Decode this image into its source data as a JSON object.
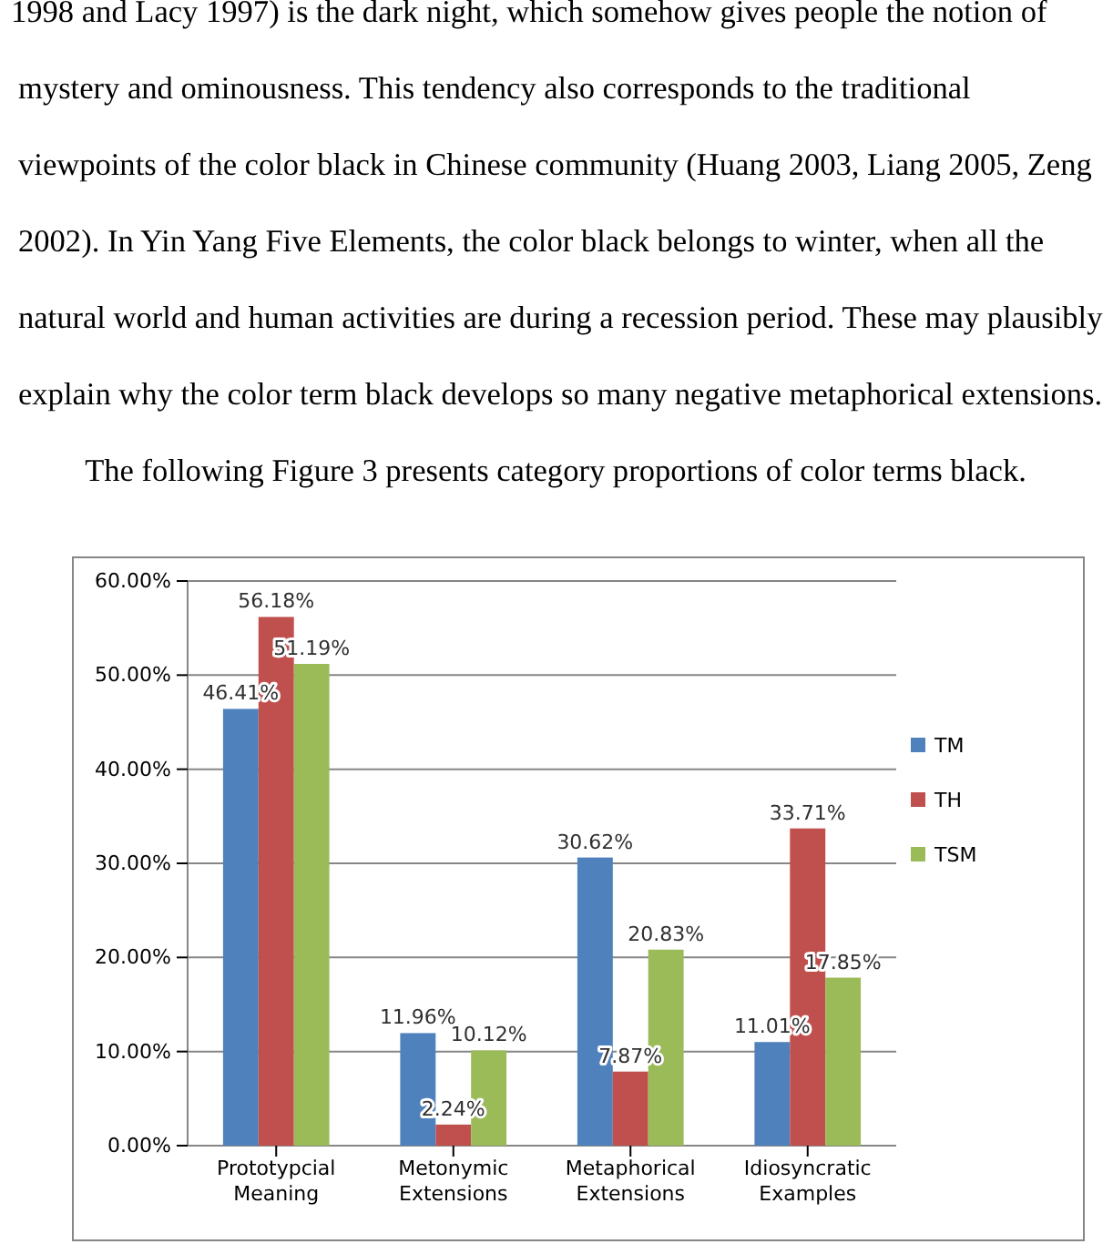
{
  "chart_data": {
    "type": "bar",
    "title": "The following Figure 3 presents category proportions of color terms black.",
    "annotations": [
      "1998 and Lacy 1997) is the dark night, which somehow gives people the notion of",
      "mystery and ominousness. This tendency also corresponds to the traditional",
      "viewpoints of the color black in Chinese community (Huang 2003, Liang 2005, Zeng",
      "2002). In Yin Yang Five Elements, the color black belongs to winter, when all the",
      "natural world and human activities are during a recession period. These may plausibly",
      "explain why the color term black develops so many negative metaphorical extensions."
    ],
    "categories": [
      "Prototypcial Meaning",
      "Metonymic Extensions",
      "Metaphorical Extensions",
      "Idiosyncratic Examples"
    ],
    "series": [
      {
        "name": "TM",
        "color": "#4f81bd",
        "values": [
          46.41,
          11.96,
          30.62,
          11.01
        ],
        "value_labels": [
          "46.41%",
          "11.96%",
          "30.62%",
          "11.01%"
        ]
      },
      {
        "name": "TH",
        "color": "#c0504d",
        "values": [
          56.18,
          2.24,
          7.87,
          33.71
        ],
        "value_labels": [
          "56.18%",
          "2.24%",
          "7.87%",
          "33.71%"
        ]
      },
      {
        "name": "TSM",
        "color": "#9bbb59",
        "values": [
          51.19,
          10.12,
          20.83,
          17.85
        ],
        "value_labels": [
          "51.19%",
          "10.12%",
          "20.83%",
          "17.85%"
        ]
      }
    ],
    "ylim": [
      0,
      60
    ],
    "yticks": [
      {
        "value": 0,
        "label": "0.00%"
      },
      {
        "value": 10,
        "label": "10.00%"
      },
      {
        "value": 20,
        "label": "20.00%"
      },
      {
        "value": 30,
        "label": "30.00%"
      },
      {
        "value": 40,
        "label": "40.00%"
      },
      {
        "value": 50,
        "label": "50.00%"
      },
      {
        "value": 60,
        "label": "60.00%"
      }
    ],
    "grid": true,
    "legend": "right"
  }
}
